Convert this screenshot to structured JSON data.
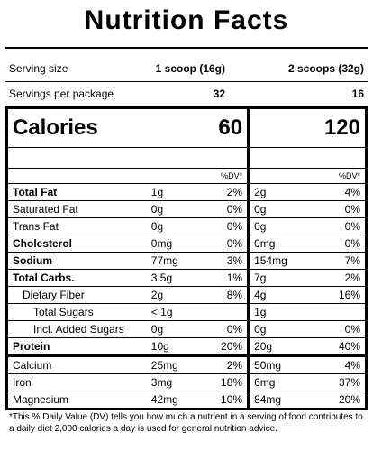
{
  "title": "Nutrition Facts",
  "serving": {
    "label": "Serving size",
    "col1": "1 scoop (16g)",
    "col2": "2 scoops (32g)"
  },
  "servings_per_package": {
    "label": "Servings per package",
    "col1": "32",
    "col2": "16"
  },
  "calories": {
    "label": "Calories",
    "col1": "60",
    "col2": "120"
  },
  "dv_header": {
    "col1": "%DV*",
    "col2": "%DV*"
  },
  "nutrients": [
    {
      "name": "Total Fat",
      "a1": "1g",
      "p1": "2%",
      "a2": "2g",
      "p2": "4%"
    },
    {
      "name": "Saturated Fat",
      "a1": "0g",
      "p1": "0%",
      "a2": "0g",
      "p2": "0%"
    },
    {
      "name": "Trans Fat",
      "a1": "0g",
      "p1": "0%",
      "a2": "0g",
      "p2": "0%"
    },
    {
      "name": "Cholesterol",
      "a1": "0mg",
      "p1": "0%",
      "a2": "0mg",
      "p2": "0%"
    },
    {
      "name": "Sodium",
      "a1": "77mg",
      "p1": "3%",
      "a2": "154mg",
      "p2": "7%"
    },
    {
      "name": "Total Carbs.",
      "a1": "3.5g",
      "p1": "1%",
      "a2": "7g",
      "p2": "2%"
    },
    {
      "name": "Dietary Fiber",
      "a1": "2g",
      "p1": "8%",
      "a2": "4g",
      "p2": "16%"
    },
    {
      "name": "Total Sugars",
      "a1": "< 1g",
      "p1": "",
      "a2": "1g",
      "p2": ""
    },
    {
      "name": "Incl. Added Sugars",
      "a1": "0g",
      "p1": "0%",
      "a2": "0g",
      "p2": "0%"
    },
    {
      "name": "Protein",
      "a1": "10g",
      "p1": "20%",
      "a2": "20g",
      "p2": "40%"
    },
    {
      "name": "Calcium",
      "a1": "25mg",
      "p1": "2%",
      "a2": "50mg",
      "p2": "4%"
    },
    {
      "name": "Iron",
      "a1": "3mg",
      "p1": "18%",
      "a2": "6mg",
      "p2": "37%"
    },
    {
      "name": "Magnesium",
      "a1": "42mg",
      "p1": "10%",
      "a2": "84mg",
      "p2": "20%"
    }
  ],
  "footnote": "*This % Daily Value (DV) tells you how much a nutrient in a serving of food contributes to a daily diet 2,000 calories a day is used for general nutrition advice."
}
